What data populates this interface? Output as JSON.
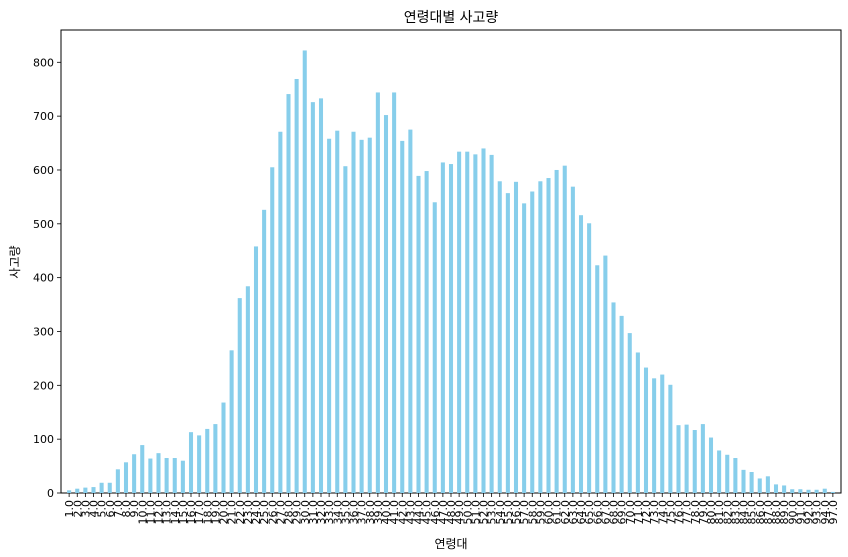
{
  "chart_data": {
    "type": "bar",
    "title": "연령대별 사고량",
    "xlabel": "연령대",
    "ylabel": "사고량",
    "ylim": [
      0,
      860
    ],
    "yticks": [
      0,
      100,
      200,
      300,
      400,
      500,
      600,
      700,
      800
    ],
    "grid": false,
    "legend": "none",
    "bar_color": "#87ceeb",
    "categories": [
      "1.0",
      "2.0",
      "3.0",
      "4.0",
      "5.0",
      "6.0",
      "7.0",
      "8.0",
      "9.0",
      "10.0",
      "11.0",
      "12.0",
      "13.0",
      "14.0",
      "15.0",
      "16.0",
      "17.0",
      "18.0",
      "19.0",
      "20.0",
      "21.0",
      "22.0",
      "23.0",
      "24.0",
      "25.0",
      "26.0",
      "27.0",
      "28.0",
      "29.0",
      "30.0",
      "31.0",
      "32.0",
      "33.0",
      "34.0",
      "35.0",
      "36.0",
      "37.0",
      "38.0",
      "39.0",
      "40.0",
      "41.0",
      "42.0",
      "43.0",
      "44.0",
      "45.0",
      "46.0",
      "47.0",
      "48.0",
      "49.0",
      "50.0",
      "51.0",
      "52.0",
      "53.0",
      "54.0",
      "55.0",
      "56.0",
      "57.0",
      "58.0",
      "59.0",
      "60.0",
      "61.0",
      "62.0",
      "63.0",
      "64.0",
      "65.0",
      "66.0",
      "67.0",
      "68.0",
      "69.0",
      "70.0",
      "71.0",
      "72.0",
      "73.0",
      "74.0",
      "75.0",
      "76.0",
      "77.0",
      "78.0",
      "79.0",
      "80.0",
      "81.0",
      "82.0",
      "83.0",
      "84.0",
      "85.0",
      "86.0",
      "87.0",
      "88.0",
      "89.0",
      "90.0",
      "91.0",
      "92.0",
      "93.0",
      "94.0",
      "97.0"
    ],
    "values": [
      5,
      8,
      10,
      11,
      19,
      19,
      44,
      57,
      72,
      89,
      64,
      74,
      65,
      65,
      60,
      113,
      107,
      119,
      128,
      168,
      265,
      362,
      384,
      458,
      526,
      605,
      671,
      741,
      769,
      822,
      726,
      733,
      658,
      673,
      607,
      671,
      656,
      660,
      744,
      702,
      744,
      654,
      675,
      589,
      598,
      540,
      614,
      611,
      634,
      634,
      629,
      640,
      628,
      579,
      557,
      578,
      538,
      560,
      579,
      585,
      600,
      608,
      569,
      516,
      501,
      423,
      441,
      354,
      329,
      297,
      261,
      233,
      213,
      220,
      201,
      126,
      127,
      117,
      128,
      103,
      79,
      71,
      65,
      43,
      39,
      27,
      31,
      16,
      14,
      7,
      7,
      6,
      6,
      8,
      2
    ]
  }
}
